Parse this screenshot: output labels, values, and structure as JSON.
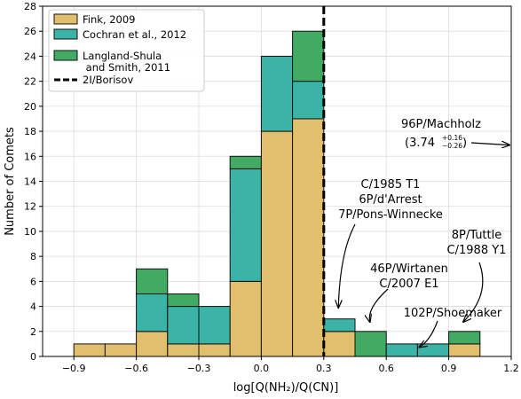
{
  "chart_data": {
    "type": "bar",
    "stacked": true,
    "xlabel": "log[Q(NH₂)/Q(CN)]",
    "ylabel": "Number of Comets",
    "xlim": [
      -1.05,
      1.2
    ],
    "ylim": [
      0,
      28
    ],
    "bin_width": 0.15,
    "bin_starts": [
      -0.9,
      -0.75,
      -0.6,
      -0.45,
      -0.3,
      -0.15,
      0.0,
      0.15,
      0.3,
      0.45,
      0.6,
      0.75,
      0.9
    ],
    "xticks": [
      -0.9,
      -0.6,
      -0.3,
      0.0,
      0.3,
      0.6,
      0.9,
      1.2
    ],
    "xtick_labels": [
      "−0.9",
      "−0.6",
      "−0.3",
      "0.0",
      "0.3",
      "0.6",
      "0.9",
      "1.2"
    ],
    "yticks": [
      0,
      2,
      4,
      6,
      8,
      10,
      12,
      14,
      16,
      18,
      20,
      22,
      24,
      26,
      28
    ],
    "grid": true,
    "legend_position": "top-left",
    "series": [
      {
        "name": "Fink, 2009",
        "color": "#e2bf6c",
        "values": [
          1,
          1,
          2,
          1,
          1,
          6,
          18,
          19,
          2,
          0,
          0,
          0,
          1
        ]
      },
      {
        "name": "Cochran et al., 2012",
        "color": "#3bb3a6",
        "values": [
          0,
          0,
          3,
          3,
          3,
          9,
          6,
          3,
          1,
          0,
          1,
          1,
          0
        ]
      },
      {
        "name": "Langland-Shula\n and Smith, 2011",
        "color": "#41aa63",
        "values": [
          0,
          0,
          2,
          1,
          0,
          1,
          0,
          4,
          0,
          2,
          0,
          0,
          1
        ]
      }
    ],
    "vline": {
      "name": "2I/Borisov",
      "x": 0.3,
      "color": "#000000"
    },
    "annotations": [
      {
        "lines": [
          "96P/Machholz"
        ],
        "subline": {
          "value": "(3.74",
          "sup": "+0.16",
          "sub": "−0.26",
          "close": ")"
        },
        "arrow_target": [
          1.2,
          16.9
        ]
      },
      {
        "lines": [
          "C/1985 T1",
          "6P/d'Arrest",
          "7P/Pons-Winnecke"
        ],
        "arrow_target": [
          0.37,
          3.2
        ]
      },
      {
        "lines": [
          "8P/Tuttle",
          "C/1988 Y1"
        ],
        "arrow_target": [
          0.97,
          2.2
        ]
      },
      {
        "lines": [
          "46P/Wirtanen",
          "C/2007 E1"
        ],
        "arrow_target": [
          0.53,
          2.2
        ]
      },
      {
        "lines": [
          "102P/Shoemaker"
        ],
        "arrow_target": [
          0.75,
          0.6
        ]
      }
    ]
  }
}
